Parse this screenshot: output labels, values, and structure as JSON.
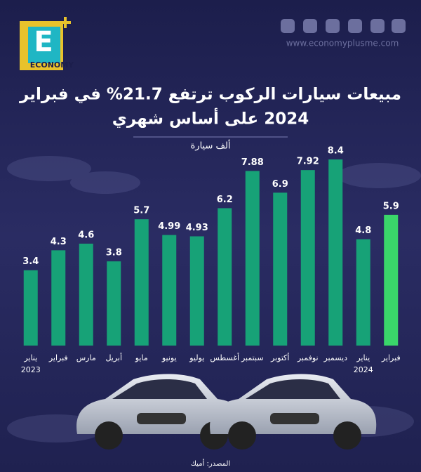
{
  "brand": {
    "logo_letter": "E",
    "logo_word": "ECONOMY",
    "website": "www.economyplusme.com"
  },
  "chart_data": {
    "type": "bar",
    "title_lines": [
      "مبيعات سيارات الركوب ترتفع 21.7% في فبراير",
      "2024 على أساس شهري"
    ],
    "unit_label": "ألف سيارة",
    "categories": [
      "يناير",
      "فبراير",
      "مارس",
      "أبريل",
      "مايو",
      "يونيو",
      "يوليو",
      "أغسطس",
      "سبتمبر",
      "أكتوبر",
      "نوفمبر",
      "ديسمبر",
      "يناير",
      "فبراير"
    ],
    "category_years": [
      "2023",
      null,
      null,
      null,
      null,
      null,
      null,
      null,
      null,
      null,
      null,
      null,
      "2024",
      null
    ],
    "values": [
      3.4,
      4.3,
      4.6,
      3.8,
      5.7,
      4.99,
      4.93,
      6.2,
      7.88,
      6.9,
      7.92,
      8.4,
      4.8,
      5.9
    ],
    "colors": [
      "#17a277",
      "#17a277",
      "#17a277",
      "#17a277",
      "#17a277",
      "#17a277",
      "#17a277",
      "#17a277",
      "#17a277",
      "#17a277",
      "#17a277",
      "#17a277",
      "#17a277",
      "#3ad66a"
    ],
    "source": "المصدر: أميك"
  }
}
